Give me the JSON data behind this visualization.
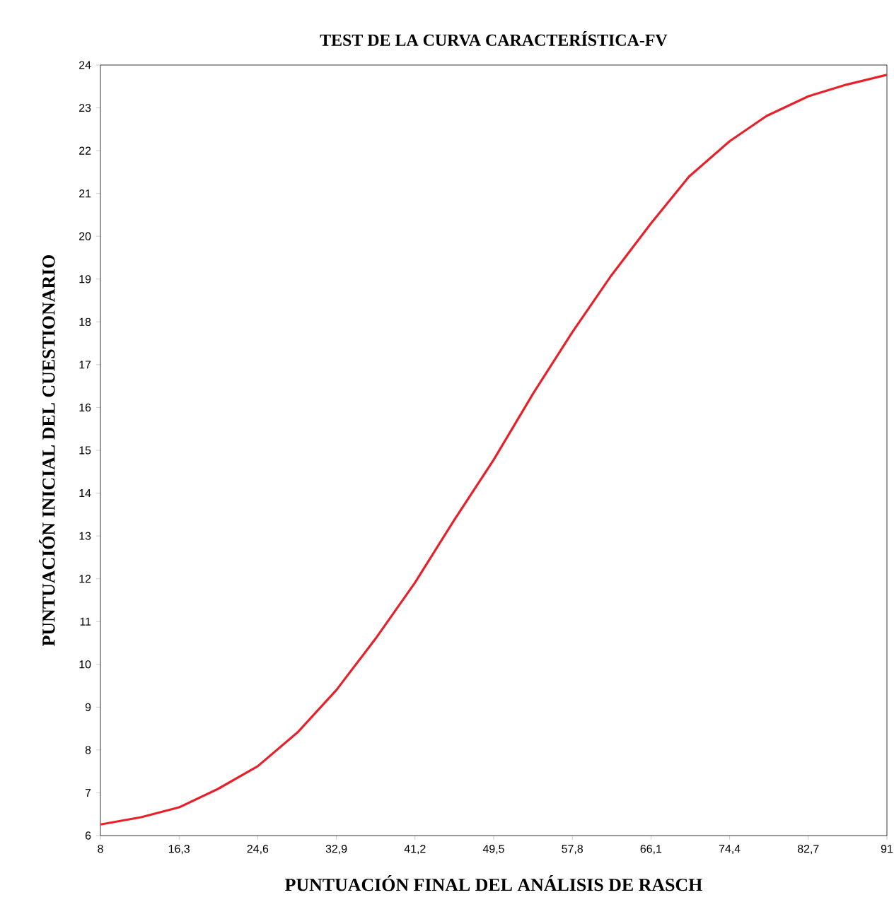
{
  "chart_data": {
    "type": "line",
    "title": "TEST DE LA CURVA CARACTERÍSTICA-FV",
    "xlabel": "PUNTUACIÓN FINAL DEL ANÁLISIS DE RASCH",
    "ylabel": "PUNTUACIÓN INICIAL DEL CUESTIONARIO",
    "x": [
      8,
      12.3,
      16.3,
      20.4,
      24.6,
      28.8,
      32.9,
      37,
      41.2,
      45.3,
      49.5,
      53.7,
      57.8,
      61.9,
      66.1,
      70.1,
      74.4,
      78.3,
      82.7,
      86.7,
      91
    ],
    "series": [
      {
        "color": "#e8202a",
        "values": [
          6.26,
          6.43,
          6.66,
          7.09,
          7.62,
          8.41,
          9.4,
          10.59,
          11.91,
          13.36,
          14.78,
          16.34,
          17.76,
          19.08,
          20.3,
          21.39,
          22.22,
          22.81,
          23.27,
          23.54,
          23.77
        ]
      }
    ],
    "xlim": [
      8,
      91
    ],
    "ylim": [
      6,
      24
    ],
    "xticks": [
      8,
      {
        "value": 16.3,
        "label": "16,3"
      },
      {
        "value": 24.6,
        "label": "24,6"
      },
      {
        "value": 32.9,
        "label": "32,9"
      },
      {
        "value": 41.2,
        "label": "41,2"
      },
      {
        "value": 49.5,
        "label": "49,5"
      },
      {
        "value": 57.8,
        "label": "57,8"
      },
      {
        "value": 66.1,
        "label": "66,1"
      },
      {
        "value": 74.4,
        "label": "74,4"
      },
      {
        "value": 82.7,
        "label": "82,7"
      },
      91
    ],
    "yticks": [
      6,
      7,
      8,
      9,
      10,
      11,
      12,
      13,
      14,
      15,
      16,
      17,
      18,
      19,
      20,
      21,
      22,
      23,
      24
    ],
    "marker": "none",
    "line_style": "solid"
  }
}
